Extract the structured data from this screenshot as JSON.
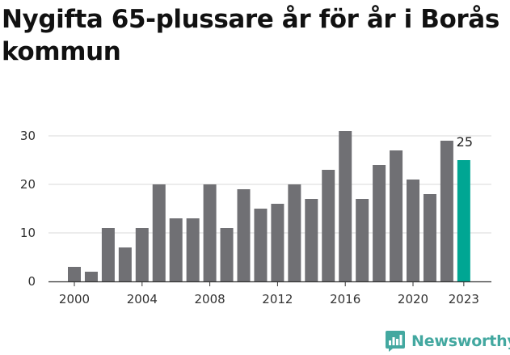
{
  "title": "Nygifta 65-plussare år för år i Borås kommun",
  "brand": {
    "name": "Newsworthy",
    "color": "#43a8a0",
    "icon": "bar-chart-badge-icon"
  },
  "colors": {
    "bar": "#707074",
    "highlight": "#00a693",
    "grid": "#d9d9d9",
    "axis": "#333333"
  },
  "chart_data": {
    "type": "bar",
    "title": "Nygifta 65-plussare år för år i Borås kommun",
    "categories": [
      "2000",
      "2001",
      "2002",
      "2003",
      "2004",
      "2005",
      "2006",
      "2007",
      "2008",
      "2009",
      "2010",
      "2011",
      "2012",
      "2013",
      "2014",
      "2015",
      "2016",
      "2017",
      "2018",
      "2019",
      "2020",
      "2021",
      "2022",
      "2023"
    ],
    "values": [
      3,
      2,
      11,
      7,
      11,
      20,
      13,
      13,
      20,
      11,
      19,
      15,
      16,
      20,
      17,
      23,
      31,
      17,
      24,
      27,
      21,
      18,
      29,
      25
    ],
    "highlight": "2023",
    "data_labels": [
      {
        "category": "2023",
        "text": "25"
      }
    ],
    "x_tick_labels": [
      "2000",
      "2004",
      "2008",
      "2012",
      "2016",
      "2020",
      "2023"
    ],
    "y_ticks": [
      0,
      10,
      20,
      30
    ],
    "ylim": [
      0,
      32
    ],
    "grid": true,
    "xlabel": "",
    "ylabel": ""
  }
}
